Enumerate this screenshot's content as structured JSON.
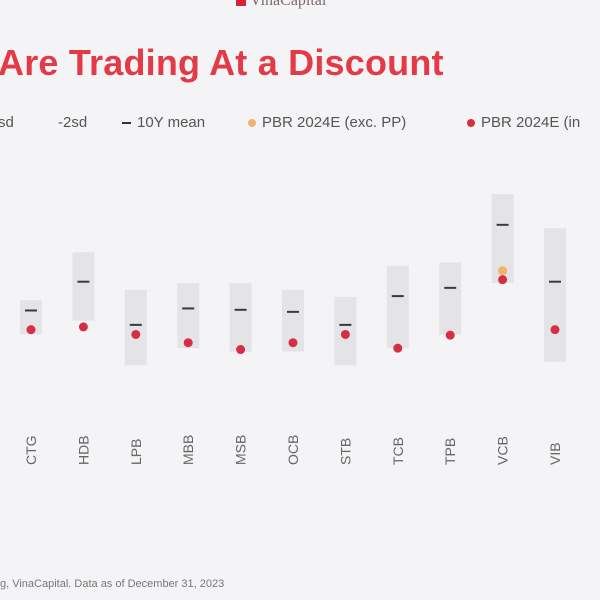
{
  "brand": {
    "name": "VinaCapital",
    "color": "#d5243a"
  },
  "title": "Are Trading At a Discount",
  "legend": [
    {
      "label": "sd",
      "marker": "none"
    },
    {
      "label": "-2sd",
      "marker": "none"
    },
    {
      "label": "10Y mean",
      "marker": "dash"
    },
    {
      "label": "PBR 2024E (exc. PP)",
      "marker": "dot",
      "color": "#f2b26b"
    },
    {
      "label": "PBR 2024E (in",
      "marker": "dot",
      "color": "#d62f45"
    }
  ],
  "chart_data": {
    "type": "scatter",
    "categories": [
      "CTG",
      "HDB",
      "LPB",
      "MBB",
      "MSB",
      "OCB",
      "STB",
      "TCB",
      "TPB",
      "VCB",
      "VIB"
    ],
    "range": {
      "low": [
        1.0,
        1.2,
        0.55,
        0.8,
        0.75,
        0.75,
        0.55,
        0.8,
        1.0,
        1.75,
        0.6
      ],
      "high": [
        1.5,
        2.2,
        1.65,
        1.75,
        1.75,
        1.65,
        1.55,
        2.0,
        2.05,
        3.05,
        2.55
      ]
    },
    "series": [
      {
        "name": "10Y mean",
        "values": [
          1.35,
          1.77,
          1.14,
          1.38,
          1.36,
          1.33,
          1.14,
          1.56,
          1.68,
          2.6,
          1.77
        ]
      },
      {
        "name": "PBR 2024E (exc. PP)",
        "values": [
          null,
          null,
          null,
          null,
          null,
          null,
          null,
          null,
          null,
          1.93,
          null
        ]
      },
      {
        "name": "PBR 2024E (in",
        "values": [
          1.07,
          1.11,
          1.0,
          0.88,
          0.78,
          0.88,
          1.0,
          0.8,
          0.99,
          1.8,
          1.07
        ]
      }
    ],
    "ylim": [
      0,
      3.4
    ],
    "grid": false,
    "legend_position": "top",
    "colors": {
      "range": "#e4e4e6",
      "mean": "#3a3a3a",
      "exc": "#f2b26b",
      "inc": "#d62f45"
    }
  },
  "source": "g, VinaCapital. Data as of December 31, 2023"
}
